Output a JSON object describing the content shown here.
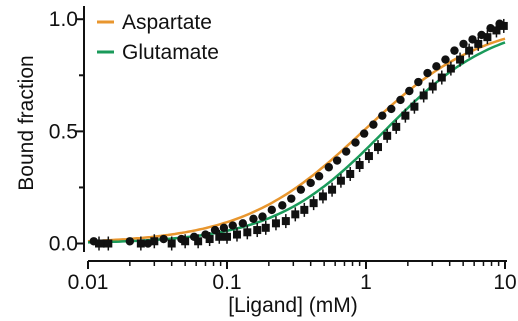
{
  "chart_data": {
    "type": "scatter",
    "xlabel": "[Ligand] (mM)",
    "ylabel": "Bound fraction",
    "x_scale": "log",
    "xlim": [
      0.01,
      10
    ],
    "ylim": [
      -0.02,
      1.05
    ],
    "x_ticks": [
      {
        "value": 0.01,
        "label": "0.01"
      },
      {
        "value": 0.1,
        "label": "0.1"
      },
      {
        "value": 1,
        "label": "1"
      },
      {
        "value": 10,
        "label": "10"
      }
    ],
    "y_ticks": [
      {
        "value": 0.0,
        "label": "0.0"
      },
      {
        "value": 0.5,
        "label": "0.5"
      },
      {
        "value": 1.0,
        "label": "1.0"
      }
    ],
    "grid": false,
    "legend_position": "top-left",
    "colors": {
      "aspartate": "#E8962E",
      "glutamate": "#1A9A5A",
      "markers": "#111111"
    },
    "series": [
      {
        "name": "Aspartate",
        "marker": "circle",
        "fit_kd": 0.95,
        "fit_hill": 1.0,
        "points": [
          [
            0.011,
            0.01
          ],
          [
            0.013,
            0.0
          ],
          [
            0.02,
            0.01
          ],
          [
            0.027,
            0.0
          ],
          [
            0.035,
            0.02
          ],
          [
            0.047,
            0.02
          ],
          [
            0.058,
            0.03
          ],
          [
            0.07,
            0.04
          ],
          [
            0.082,
            0.06
          ],
          [
            0.095,
            0.07
          ],
          [
            0.11,
            0.08
          ],
          [
            0.13,
            0.09
          ],
          [
            0.155,
            0.11
          ],
          [
            0.18,
            0.12
          ],
          [
            0.21,
            0.15
          ],
          [
            0.25,
            0.17
          ],
          [
            0.29,
            0.2
          ],
          [
            0.34,
            0.24
          ],
          [
            0.4,
            0.27
          ],
          [
            0.46,
            0.3
          ],
          [
            0.54,
            0.34
          ],
          [
            0.62,
            0.37
          ],
          [
            0.72,
            0.41
          ],
          [
            0.84,
            0.45
          ],
          [
            0.97,
            0.49
          ],
          [
            1.13,
            0.53
          ],
          [
            1.31,
            0.57
          ],
          [
            1.52,
            0.6
          ],
          [
            1.77,
            0.64
          ],
          [
            2.05,
            0.68
          ],
          [
            2.38,
            0.72
          ],
          [
            2.77,
            0.76
          ],
          [
            3.21,
            0.79
          ],
          [
            3.73,
            0.82
          ],
          [
            4.33,
            0.86
          ],
          [
            5.03,
            0.89
          ],
          [
            5.84,
            0.91
          ],
          [
            6.78,
            0.93
          ],
          [
            7.87,
            0.96
          ],
          [
            9.14,
            0.98
          ]
        ]
      },
      {
        "name": "Glutamate",
        "marker": "square",
        "fit_kd": 1.35,
        "fit_hill": 1.08,
        "points": [
          [
            0.012,
            0.0
          ],
          [
            0.014,
            0.0
          ],
          [
            0.024,
            0.0
          ],
          [
            0.03,
            0.01
          ],
          [
            0.04,
            0.0
          ],
          [
            0.05,
            0.01
          ],
          [
            0.062,
            0.01
          ],
          [
            0.075,
            0.02
          ],
          [
            0.088,
            0.03
          ],
          [
            0.1,
            0.03
          ],
          [
            0.118,
            0.04
          ],
          [
            0.14,
            0.05
          ],
          [
            0.165,
            0.06
          ],
          [
            0.19,
            0.07
          ],
          [
            0.225,
            0.09
          ],
          [
            0.265,
            0.1
          ],
          [
            0.31,
            0.13
          ],
          [
            0.36,
            0.15
          ],
          [
            0.42,
            0.18
          ],
          [
            0.49,
            0.21
          ],
          [
            0.57,
            0.24
          ],
          [
            0.66,
            0.28
          ],
          [
            0.77,
            0.31
          ],
          [
            0.9,
            0.35
          ],
          [
            1.05,
            0.39
          ],
          [
            1.22,
            0.43
          ],
          [
            1.42,
            0.48
          ],
          [
            1.65,
            0.52
          ],
          [
            1.92,
            0.57
          ],
          [
            2.23,
            0.61
          ],
          [
            2.6,
            0.66
          ],
          [
            3.02,
            0.7
          ],
          [
            3.51,
            0.74
          ],
          [
            4.08,
            0.78
          ],
          [
            4.75,
            0.82
          ],
          [
            5.52,
            0.86
          ],
          [
            6.42,
            0.89
          ],
          [
            7.47,
            0.92
          ],
          [
            8.68,
            0.95
          ],
          [
            9.8,
            0.97
          ]
        ]
      }
    ]
  }
}
